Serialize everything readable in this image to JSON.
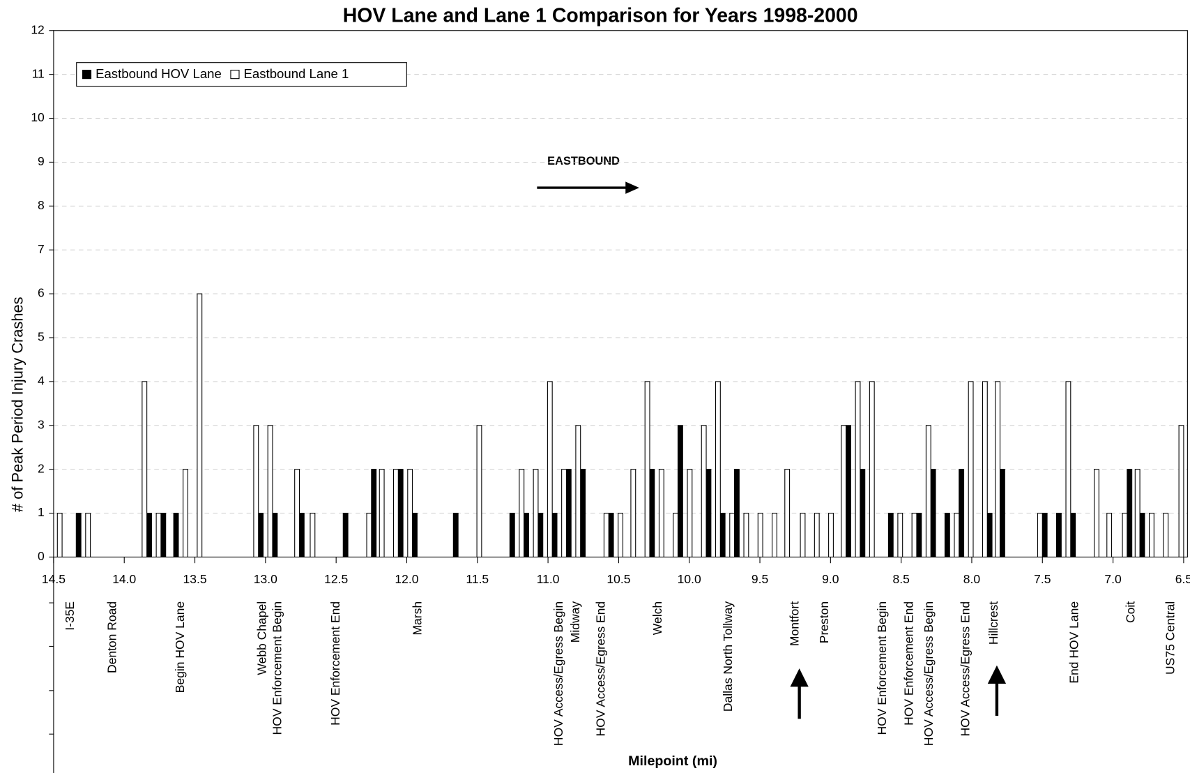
{
  "chart_data": {
    "type": "bar",
    "title": "HOV Lane and Lane 1 Comparison for Years 1998-2000",
    "xlabel": "Milepoint (mi)",
    "ylabel": "# of Peak Period Injury Crashes",
    "annotation": "EASTBOUND",
    "x": [
      14.44,
      14.34,
      14.24,
      13.84,
      13.74,
      13.65,
      13.55,
      13.45,
      13.05,
      12.95,
      12.76,
      12.65,
      12.45,
      12.25,
      12.16,
      12.06,
      11.96,
      11.67,
      11.47,
      11.27,
      11.17,
      11.07,
      10.97,
      10.87,
      10.77,
      10.57,
      10.47,
      10.38,
      10.28,
      10.18,
      10.08,
      9.98,
      9.88,
      9.78,
      9.68,
      9.58,
      9.48,
      9.38,
      9.29,
      9.18,
      9.08,
      8.98,
      8.89,
      8.79,
      8.69,
      8.59,
      8.49,
      8.39,
      8.29,
      8.19,
      8.09,
      7.99,
      7.89,
      7.8,
      7.5,
      7.4,
      7.3,
      7.1,
      7.01,
      6.9,
      6.81,
      6.71,
      6.61,
      6.5
    ],
    "series": [
      {
        "name": "Eastbound HOV Lane",
        "color": "#000000",
        "values": [
          0,
          1,
          0,
          1,
          1,
          1,
          0,
          0,
          1,
          1,
          1,
          0,
          1,
          2,
          0,
          2,
          1,
          1,
          0,
          1,
          1,
          1,
          1,
          2,
          2,
          1,
          0,
          0,
          2,
          0,
          3,
          0,
          2,
          1,
          2,
          0,
          0,
          0,
          0,
          0,
          0,
          0,
          3,
          2,
          0,
          1,
          0,
          1,
          2,
          1,
          2,
          0,
          1,
          2,
          1,
          1,
          1,
          0,
          0,
          2,
          1,
          0,
          0,
          0
        ]
      },
      {
        "name": "Eastbound Lane 1",
        "color": "#ffffff",
        "values": [
          1,
          0,
          1,
          4,
          1,
          0,
          2,
          6,
          3,
          3,
          2,
          1,
          0,
          1,
          2,
          2,
          2,
          0,
          3,
          0,
          2,
          2,
          4,
          2,
          3,
          1,
          1,
          2,
          4,
          2,
          1,
          2,
          3,
          4,
          1,
          1,
          1,
          1,
          2,
          1,
          1,
          1,
          3,
          4,
          4,
          0,
          1,
          1,
          3,
          0,
          1,
          4,
          4,
          4,
          1,
          0,
          4,
          2,
          1,
          1,
          2,
          1,
          1,
          3
        ]
      }
    ],
    "edgecolor": "#000000",
    "xlim": [
      14.5,
      6.5
    ],
    "xticks": [
      14.5,
      {
        "value": 14,
        "label": "14.0"
      },
      13.5,
      {
        "value": 13,
        "label": "13.0"
      },
      12.5,
      {
        "value": 12,
        "label": "12.0"
      },
      11.5,
      {
        "value": 11,
        "label": "11.0"
      },
      10.5,
      {
        "value": 10,
        "label": "10.0"
      },
      9.5,
      {
        "value": 9,
        "label": "9.0"
      },
      8.5,
      {
        "value": 8,
        "label": "8.0"
      },
      7.5,
      {
        "value": 7,
        "label": "7.0"
      },
      6.5
    ],
    "ylim": [
      0,
      12
    ],
    "yticks": [
      0,
      1,
      2,
      3,
      4,
      5,
      6,
      7,
      8,
      9,
      10,
      11,
      12
    ],
    "grid": true,
    "legend": "upper left",
    "landmarks": [
      {
        "label": "I-35E",
        "x": 14.38
      },
      {
        "label": "Denton Road",
        "x": 14.08
      },
      {
        "label": "Begin HOV Lane",
        "x": 13.6
      },
      {
        "label": "Webb Chapel",
        "x": 13.02
      },
      {
        "label": "HOV Enforcement Begin",
        "x": 12.91
      },
      {
        "label": "HOV Enforcement End",
        "x": 12.5
      },
      {
        "label": "Marsh",
        "x": 11.92
      },
      {
        "label": "HOV Access/Egress Begin",
        "x": 10.92
      },
      {
        "label": "Midway",
        "x": 10.8
      },
      {
        "label": "HOV Access/Egress End",
        "x": 10.62
      },
      {
        "label": "Welch",
        "x": 10.22
      },
      {
        "label": "Dallas North Tollway",
        "x": 9.72
      },
      {
        "label": "Montfort",
        "x": 9.25
      },
      {
        "label": "Preston",
        "x": 9.04
      },
      {
        "label": "HOV Enforcement Begin",
        "x": 8.63
      },
      {
        "label": "HOV Enforcement End",
        "x": 8.44
      },
      {
        "label": "HOV Access/Egress Begin",
        "x": 8.3
      },
      {
        "label": "HOV Access/Egress End",
        "x": 8.04
      },
      {
        "label": "Hillcrest",
        "x": 7.84
      },
      {
        "label": "End HOV Lane",
        "x": 7.27
      },
      {
        "label": "Coit",
        "x": 6.87
      },
      {
        "label": "US75 Central",
        "x": 6.59
      }
    ]
  }
}
